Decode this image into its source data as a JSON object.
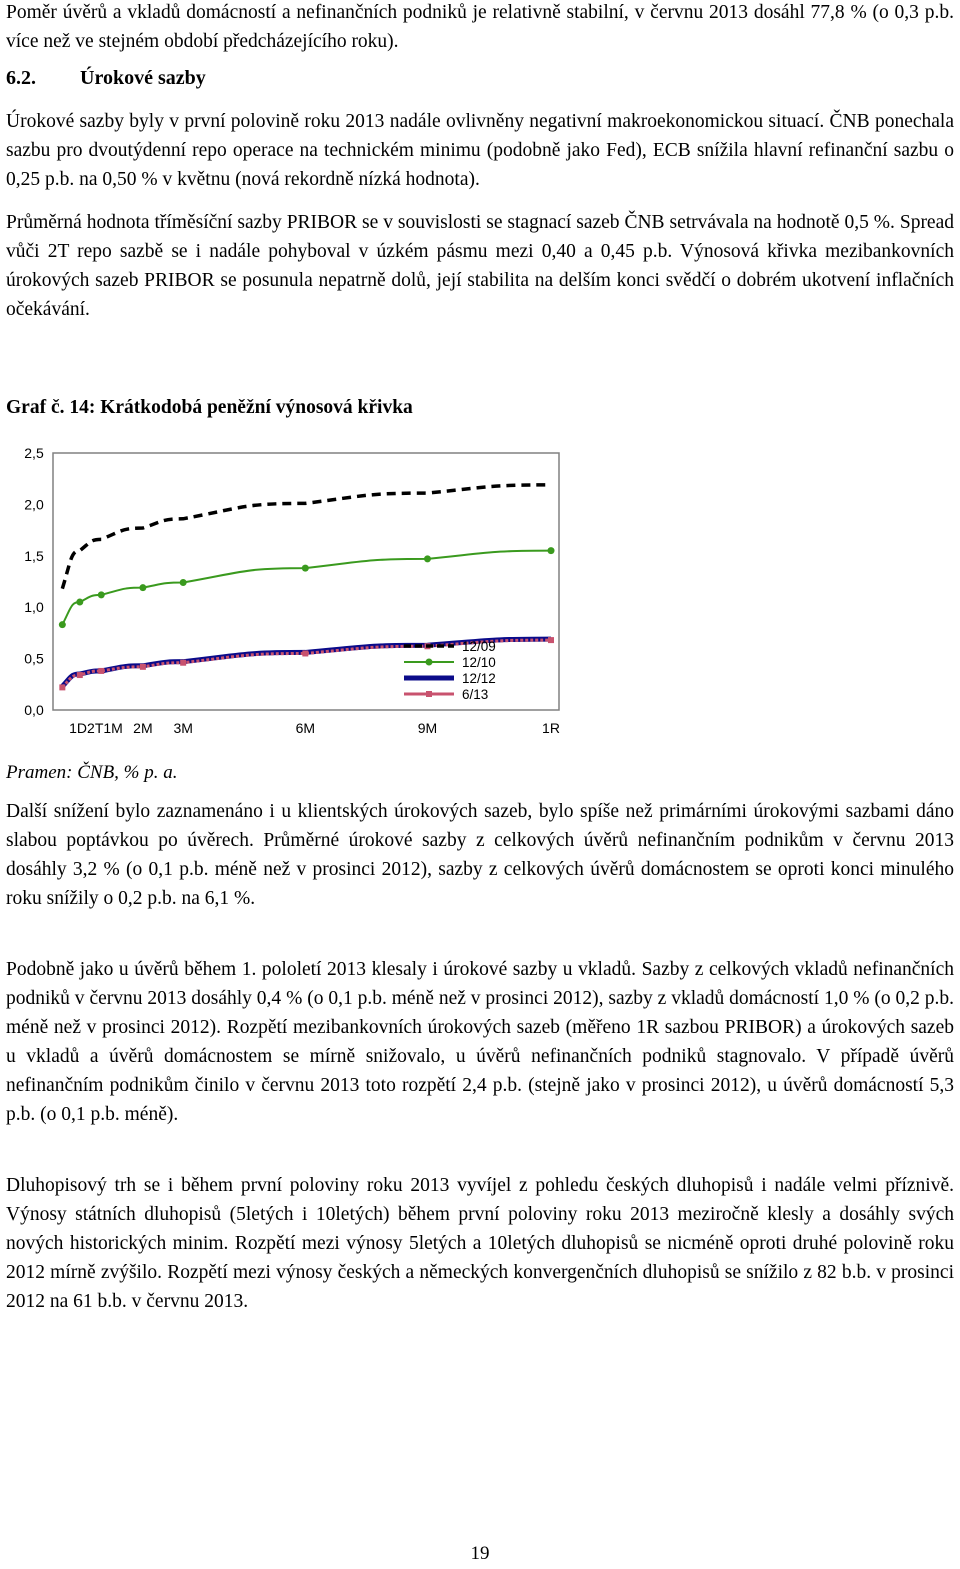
{
  "intro_line": "Poměr úvěrů a vkladů domácností a nefinančních podniků je relativně stabilní, v červnu 2013 dosáhl 77,8 % (o 0,3 p.b. více než ve stejném období předcházejícího roku).",
  "section": {
    "number": "6.2.",
    "title": "Úrokové sazby"
  },
  "para1": "Úrokové sazby byly v první polovině roku 2013 nadále ovlivněny negativní makroekonomickou situací. ČNB ponechala sazbu pro dvoutýdenní repo operace na technickém minimu (podobně jako Fed), ECB snížila hlavní refinanční sazbu o 0,25 p.b. na 0,50 % v květnu (nová rekordně nízká hodnota).",
  "para2": "Průměrná hodnota tříměsíční sazby PRIBOR se v souvislosti se stagnací sazeb ČNB setrvávala na hodnotě 0,5 %. Spread vůči 2T repo sazbě se i nadále pohyboval v úzkém pásmu mezi 0,40 a 0,45 p.b. Výnosová křivka mezibankovních úrokových sazeb PRIBOR se posunula nepatrně dolů, její stabilita na delším konci svědčí o dobrém ukotvení inflačních očekávání.",
  "graph_caption": "Graf č. 14: Krátkodobá peněžní výnosová křivka",
  "source": "Pramen: ČNB, % p. a.",
  "para3": "Další snížení bylo zaznamenáno i u klientských úrokových sazeb, bylo spíše než primárními úrokovými sazbami dáno slabou poptávkou po úvěrech. Průměrné úrokové sazby z celkových úvěrů nefinančním podnikům v červnu 2013 dosáhly 3,2 % (o 0,1 p.b. méně než v prosinci 2012), sazby z celkových úvěrů domácnostem se oproti konci minulého roku snížily o 0,2 p.b. na 6,1 %.",
  "para4": "Podobně jako u úvěrů během 1. pololetí 2013 klesaly i úrokové sazby u vkladů. Sazby z celkových vkladů nefinančních podniků v červnu 2013 dosáhly 0,4 % (o 0,1 p.b. méně než v prosinci 2012), sazby z vkladů domácností 1,0 % (o 0,2 p.b. méně než v prosinci 2012). Rozpětí mezibankovních úrokových sazeb (měřeno 1R sazbou PRIBOR) a úrokových sazeb u vkladů a úvěrů domácnostem se mírně snižovalo, u úvěrů nefinančních podniků stagnovalo. V případě úvěrů nefinančním podnikům činilo v červnu 2013 toto rozpětí 2,4 p.b. (stejně jako v prosinci 2012), u úvěrů domácností 5,3 p.b. (o 0,1 p.b. méně).",
  "para5": "Dluhopisový trh se i během první poloviny roku 2013 vyvíjel z pohledu českých dluhopisů i nadále velmi příznivě. Výnosy státních dluhopisů (5letých i 10letých) během první poloviny roku 2013 meziročně klesly a dosáhly svých nových historických minim. Rozpětí mezi výnosy 5letých a 10letých dluhopisů se nicméně oproti druhé polovině roku 2012 mírně zvýšilo. Rozpětí mezi výnosy českých a německých konvergenčních dluhopisů se snížilo z 82 b.b. v prosinci 2012 na 61 b.b. v červnu 2013.",
  "page_number": "19",
  "chart_data": {
    "type": "line",
    "title": "",
    "xlabel": "",
    "ylabel": "",
    "ylim": [
      0,
      2.5
    ],
    "y_ticks": [
      "0,0",
      "0,5",
      "1,0",
      "1,5",
      "2,0",
      "2,5"
    ],
    "x_ticks": [
      {
        "label": "1D",
        "day": 1
      },
      {
        "label": "2T",
        "day": 14
      },
      {
        "label": "1M",
        "day": 30
      },
      {
        "label": "2M",
        "day": 61
      },
      {
        "label": "3M",
        "day": 91
      },
      {
        "label": "6M",
        "day": 182
      },
      {
        "label": "9M",
        "day": 273
      },
      {
        "label": "1R",
        "day": 365
      }
    ],
    "xlim_days": [
      0,
      365
    ],
    "grid": false,
    "legend_position": "bottom-right",
    "series": [
      {
        "name": "12/09",
        "color": "#000000",
        "style": "dashed",
        "x_days": [
          1,
          14,
          30,
          61,
          91,
          182,
          273,
          365
        ],
        "values": [
          1.18,
          1.55,
          1.66,
          1.77,
          1.86,
          2.01,
          2.11,
          2.19
        ]
      },
      {
        "name": "12/10",
        "color": "#3a9a1e",
        "style": "solid-markers",
        "x_days": [
          1,
          14,
          30,
          61,
          91,
          182,
          273,
          365
        ],
        "values": [
          0.83,
          1.05,
          1.12,
          1.19,
          1.24,
          1.38,
          1.47,
          1.55
        ]
      },
      {
        "name": "12/12",
        "color": "#0b0b8a",
        "style": "solid-thick",
        "x_days": [
          1,
          14,
          30,
          61,
          91,
          182,
          273,
          365
        ],
        "values": [
          0.23,
          0.35,
          0.38,
          0.43,
          0.47,
          0.56,
          0.63,
          0.69
        ]
      },
      {
        "name": "6/13",
        "color": "#c8526e",
        "style": "square-markers",
        "x_days": [
          1,
          14,
          30,
          61,
          91,
          182,
          273,
          365
        ],
        "values": [
          0.22,
          0.34,
          0.38,
          0.42,
          0.46,
          0.55,
          0.62,
          0.68
        ]
      }
    ]
  }
}
